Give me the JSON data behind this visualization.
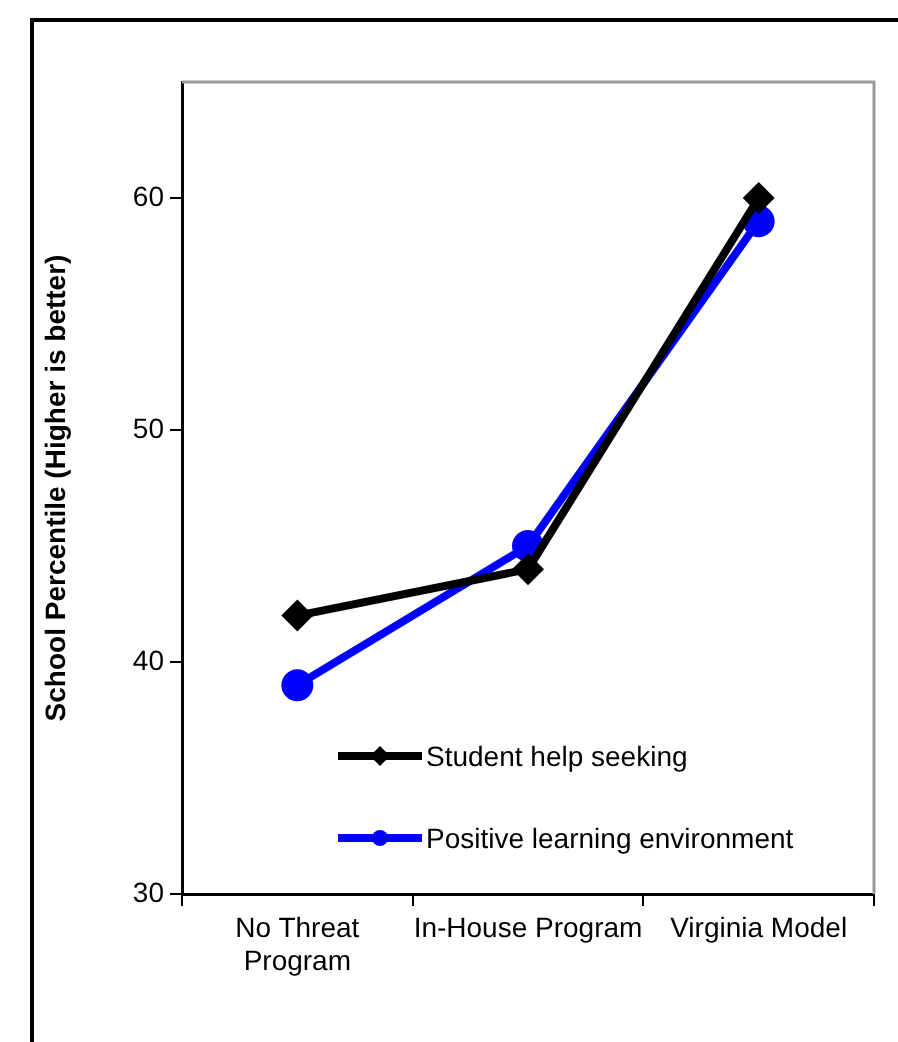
{
  "chart_data": {
    "type": "line",
    "ylabel": "School Percentile (Higher is better)",
    "categories": [
      "No Threat Program",
      "In-House Program",
      "Virginia Model"
    ],
    "series": [
      {
        "name": "Student help seeking",
        "color": "#000000",
        "marker": "diamond",
        "values": [
          42,
          44,
          60
        ]
      },
      {
        "name": "Positive learning environment",
        "color": "#0000ff",
        "marker": "circle",
        "values": [
          39,
          45,
          59
        ]
      }
    ],
    "ylim": [
      30,
      65
    ],
    "yticks": [
      30,
      40,
      50,
      60
    ],
    "grid": false,
    "legend": "bottom right"
  }
}
